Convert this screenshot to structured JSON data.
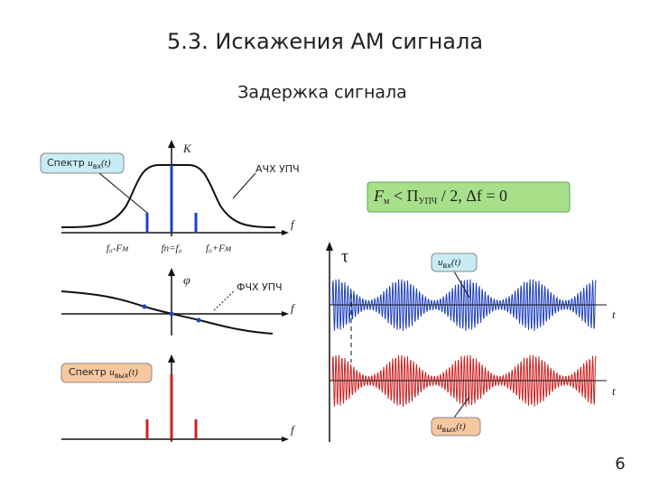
{
  "header": {
    "title": "5.3. Искажения АМ сигнала",
    "subtitle": "Задержка сигнала"
  },
  "amplitude_plot": {
    "y_axis": "K",
    "x_axis": "f",
    "curve_label": "АЧХ УПЧ",
    "spectrum_label": {
      "text": "Спектр",
      "var": "u",
      "sub": "вх",
      "arg": "(t)"
    },
    "freq_labels": [
      "f₀-Fм",
      "fп=f₀",
      "f₀+Fм"
    ]
  },
  "phase_plot": {
    "y_axis": "φ",
    "x_axis": "f",
    "curve_label": "ФЧХ УПЧ"
  },
  "output_spectrum": {
    "x_axis": "f",
    "label": {
      "text": "Спектр",
      "var": "u",
      "sub": "вых",
      "arg": "(t)"
    }
  },
  "condition": {
    "parts": [
      "F",
      "м",
      " < П",
      "УПЧ",
      " / 2,   Δf = 0"
    ]
  },
  "waveforms": {
    "delay": "τ",
    "input_label": {
      "var": "u",
      "sub": "вх",
      "arg": "(t)"
    },
    "output_label": {
      "var": "u",
      "sub": "вых",
      "arg": "(t)"
    },
    "time_axis": [
      "t",
      "t"
    ]
  },
  "footer": {
    "page_number": "6"
  }
}
